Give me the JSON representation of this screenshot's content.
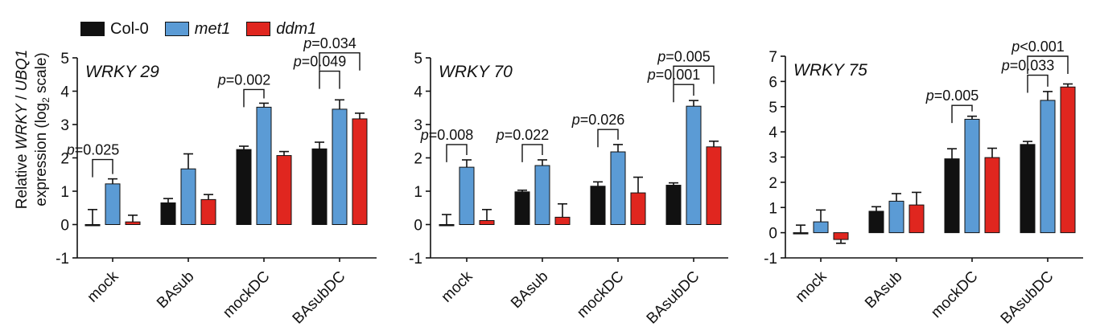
{
  "legend": [
    {
      "label": "Col-0",
      "color": "#111111",
      "italic": false
    },
    {
      "label": "met1",
      "color": "#5b9bd5",
      "italic": true
    },
    {
      "label": "ddm1",
      "color": "#e0261f",
      "italic": true
    }
  ],
  "y_axis_label": {
    "line1_pre": "Relative ",
    "line1_gene": "WRKY",
    "line1_sep": " / ",
    "line1_ref": "UBQ1",
    "line2_pre": "expression (log",
    "line2_sub": "2",
    "line2_post": " scale)"
  },
  "chart_data": [
    {
      "type": "bar",
      "title": "WRKY 29",
      "categories": [
        "mock",
        "BAsub",
        "mockDC",
        "BAsubDC"
      ],
      "ylim": [
        -1,
        5
      ],
      "yticks": [
        -1,
        0,
        1,
        2,
        3,
        4,
        5
      ],
      "series": [
        {
          "name": "Col-0",
          "values": [
            0.0,
            0.65,
            2.25,
            2.27
          ],
          "errors": [
            0.45,
            0.13,
            0.1,
            0.2
          ]
        },
        {
          "name": "met1",
          "values": [
            1.22,
            1.67,
            3.52,
            3.46
          ],
          "errors": [
            0.15,
            0.45,
            0.12,
            0.28
          ]
        },
        {
          "name": "ddm1",
          "values": [
            0.08,
            0.75,
            2.07,
            3.17
          ],
          "errors": [
            0.2,
            0.15,
            0.12,
            0.17
          ]
        }
      ],
      "annotations": [
        {
          "text": "p=0.025",
          "group": 0,
          "from": 0,
          "to": 1,
          "level": 1.95
        },
        {
          "text": "p=0.002",
          "group": 2,
          "from": 0,
          "to": 1,
          "level": 4.05
        },
        {
          "text": "p=0.049",
          "group": 3,
          "from": 0,
          "to": 1,
          "level": 4.6
        },
        {
          "text": "p=0.034",
          "group": 3,
          "from": 0,
          "to": 2,
          "level": 5.15
        }
      ]
    },
    {
      "type": "bar",
      "title": "WRKY 70",
      "categories": [
        "mock",
        "BAsub",
        "mockDC",
        "BAsubDC"
      ],
      "ylim": [
        -1,
        5
      ],
      "yticks": [
        -1,
        0,
        1,
        2,
        3,
        4,
        5
      ],
      "series": [
        {
          "name": "Col-0",
          "values": [
            0.0,
            0.98,
            1.15,
            1.18
          ],
          "errors": [
            0.3,
            0.05,
            0.13,
            0.07
          ]
        },
        {
          "name": "met1",
          "values": [
            1.72,
            1.77,
            2.18,
            3.55
          ],
          "errors": [
            0.22,
            0.17,
            0.22,
            0.17
          ]
        },
        {
          "name": "ddm1",
          "values": [
            0.12,
            0.22,
            0.95,
            2.33
          ],
          "errors": [
            0.33,
            0.4,
            0.47,
            0.17
          ]
        }
      ],
      "annotations": [
        {
          "text": "p=0.008",
          "group": 0,
          "from": 0,
          "to": 1,
          "level": 2.4
        },
        {
          "text": "p=0.022",
          "group": 1,
          "from": 0,
          "to": 1,
          "level": 2.4
        },
        {
          "text": "p=0.026",
          "group": 2,
          "from": 0,
          "to": 1,
          "level": 2.85
        },
        {
          "text": "p=0.001",
          "group": 3,
          "from": 0,
          "to": 1,
          "level": 4.2
        },
        {
          "text": "p=0.005",
          "group": 3,
          "from": 0,
          "to": 2,
          "level": 4.75
        }
      ]
    },
    {
      "type": "bar",
      "title": "WRKY 75",
      "categories": [
        "mock",
        "BAsub",
        "mockDC",
        "BAsubDC"
      ],
      "ylim": [
        -1,
        7
      ],
      "yticks": [
        -1,
        0,
        1,
        2,
        3,
        4,
        5,
        6,
        7
      ],
      "series": [
        {
          "name": "Col-0",
          "values": [
            0.0,
            0.85,
            2.93,
            3.5
          ],
          "errors": [
            0.3,
            0.18,
            0.4,
            0.12
          ]
        },
        {
          "name": "met1",
          "values": [
            0.43,
            1.25,
            4.5,
            5.25
          ],
          "errors": [
            0.47,
            0.3,
            0.12,
            0.35
          ]
        },
        {
          "name": "ddm1",
          "values": [
            -0.27,
            1.1,
            2.98,
            5.78
          ],
          "errors": [
            0.15,
            0.5,
            0.37,
            0.12
          ]
        }
      ],
      "annotations": [
        {
          "text": "p=0.005",
          "group": 2,
          "from": 0,
          "to": 1,
          "level": 5.05
        },
        {
          "text": "p=0.033",
          "group": 3,
          "from": 0,
          "to": 1,
          "level": 6.25
        },
        {
          "text": "p<0.001",
          "group": 3,
          "from": 0,
          "to": 2,
          "level": 7.0
        }
      ]
    }
  ]
}
